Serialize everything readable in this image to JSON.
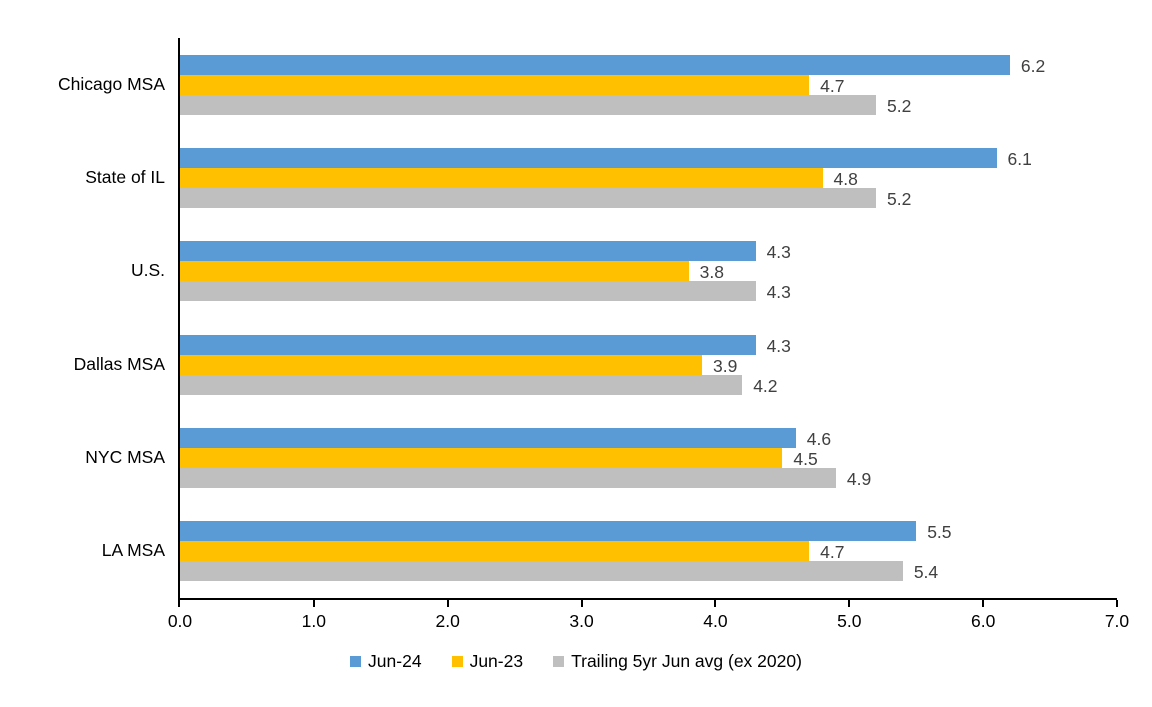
{
  "chart_data": {
    "type": "bar",
    "orientation": "horizontal",
    "title": "",
    "xlabel": "",
    "ylabel": "",
    "xlim": [
      0.0,
      7.0
    ],
    "x_ticks": [
      "0.0",
      "1.0",
      "2.0",
      "3.0",
      "4.0",
      "5.0",
      "6.0",
      "7.0"
    ],
    "grid": false,
    "data_labels": true,
    "legend_position": "bottom",
    "categories": [
      "Chicago MSA",
      "State of IL",
      "U.S.",
      "Dallas MSA",
      "NYC MSA",
      "LA MSA"
    ],
    "series": [
      {
        "name": "Jun-24",
        "color": "#5B9BD5",
        "values": [
          6.2,
          6.1,
          4.3,
          4.3,
          4.6,
          5.5
        ]
      },
      {
        "name": "Jun-23",
        "color": "#FFC000",
        "values": [
          4.7,
          4.8,
          3.8,
          3.9,
          4.5,
          4.7
        ]
      },
      {
        "name": "Trailing 5yr Jun avg (ex 2020)",
        "color": "#BFBFBF",
        "values": [
          5.2,
          5.2,
          4.3,
          4.2,
          4.9,
          5.4
        ]
      }
    ]
  },
  "colors": {
    "background": "#FFFFFF",
    "axis": "#000000",
    "data_label_text": "#404040",
    "tick_label_text": "#000000"
  }
}
